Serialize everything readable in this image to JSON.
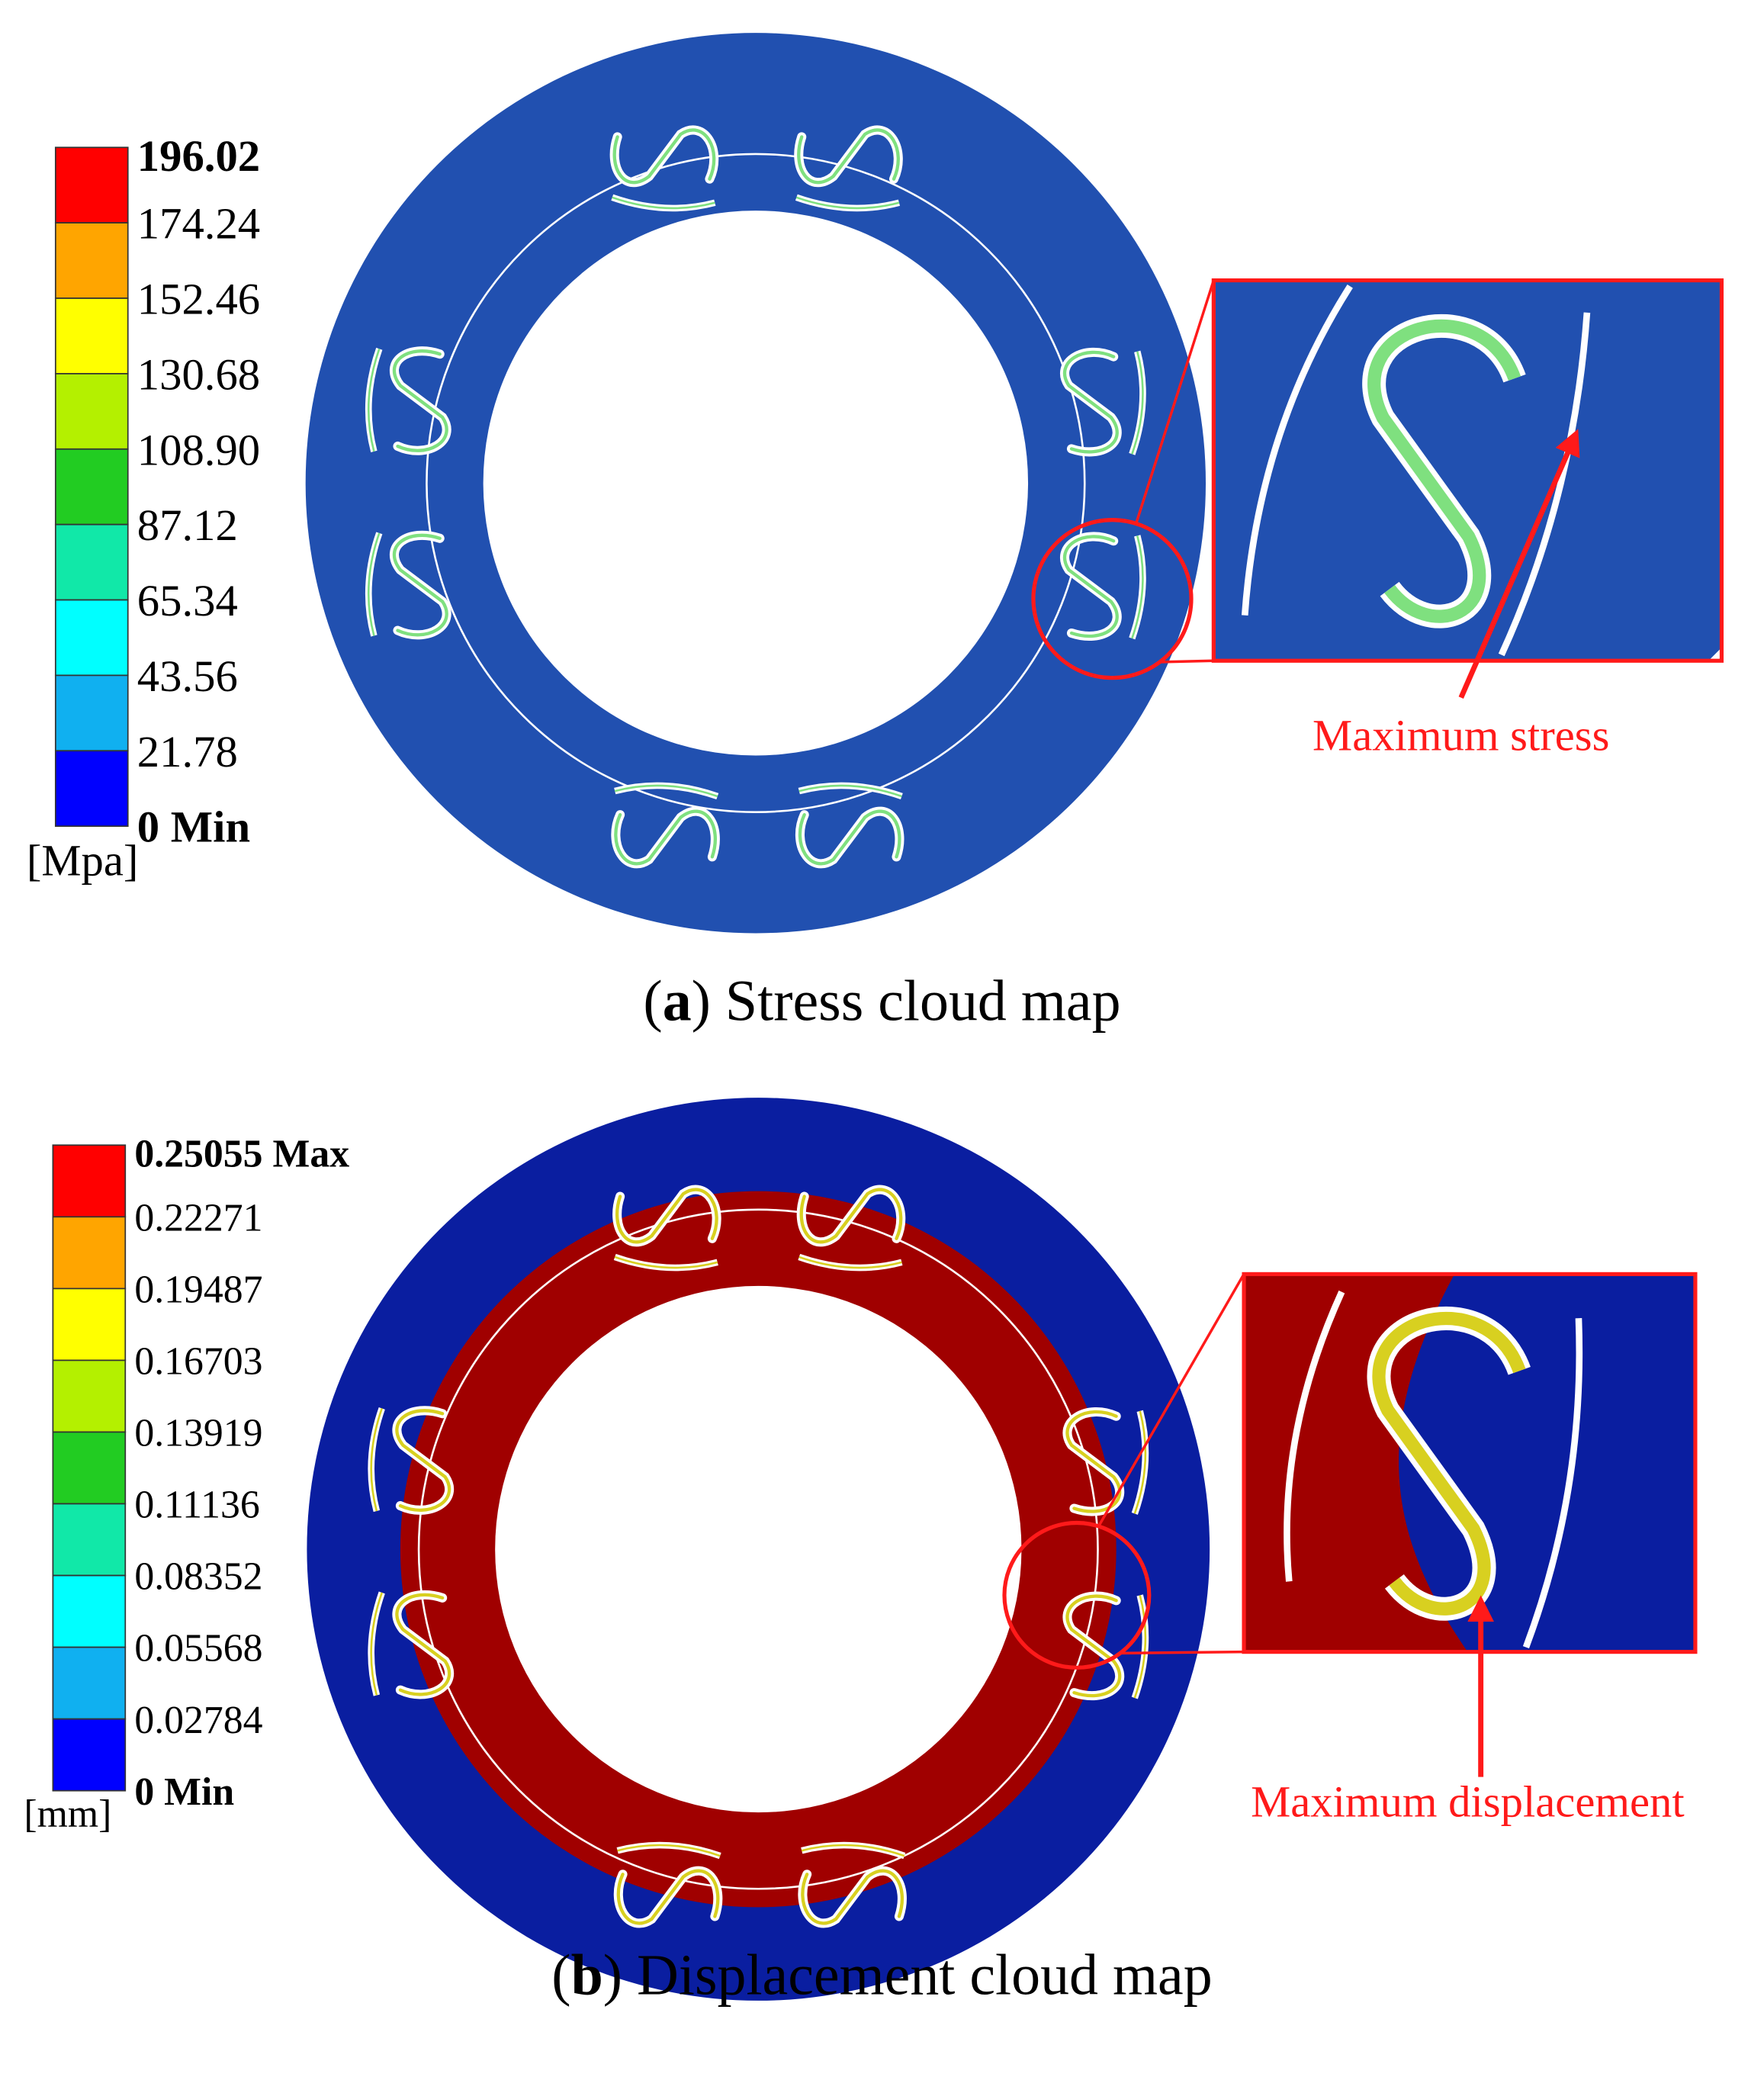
{
  "panels": [
    {
      "legend": {
        "labels": [
          "196.02",
          "174.24",
          "152.46",
          "130.68",
          "108.90",
          "87.12",
          "65.34",
          "43.56",
          "21.78",
          "0 Min"
        ],
        "unit": "[Mpa]"
      },
      "callout": "Maximum stress",
      "caption": {
        "open": "(",
        "letter": "a",
        "rest": ") Stress cloud map"
      }
    },
    {
      "legend": {
        "labels": [
          "0.25055 Max",
          "0.22271",
          "0.19487",
          "0.16703",
          "0.13919",
          "0.11136",
          "0.08352",
          "0.05568",
          "0.02784",
          "0 Min"
        ],
        "unit": "[mm]"
      },
      "callout": "Maximum displacement",
      "caption": {
        "open": "(",
        "letter": "b",
        "rest": ") Displacement cloud map"
      }
    }
  ]
}
